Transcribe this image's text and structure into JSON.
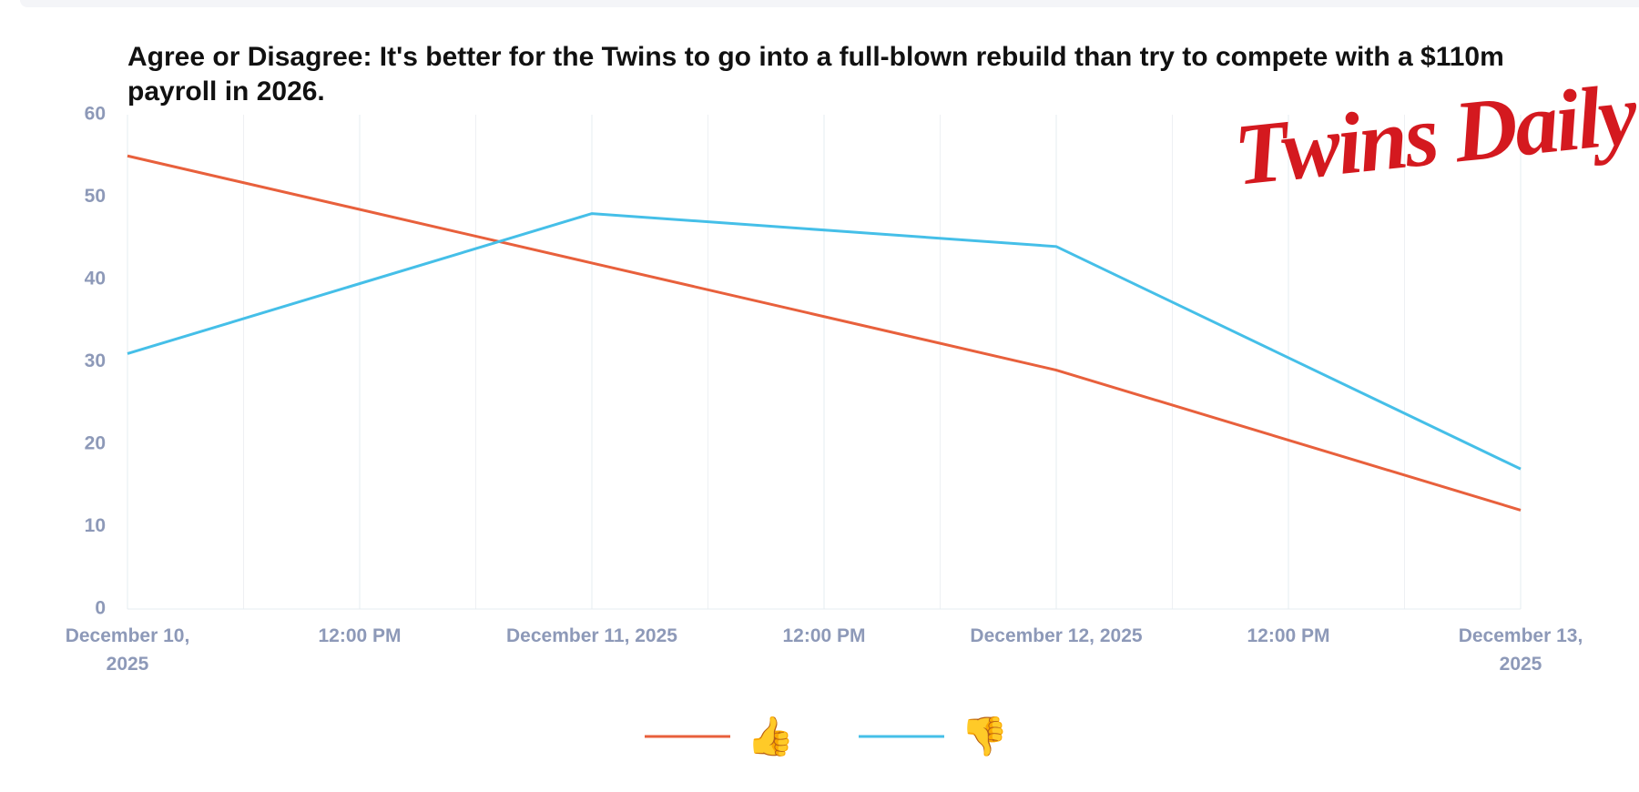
{
  "chart_data": {
    "type": "line",
    "title": "Agree or Disagree: It's better for the Twins to go into a full-blown rebuild than try to compete with a $110m payroll in 2026.",
    "logo": "Twins Daily",
    "x": [
      "December 10, 2025",
      "December 11, 2025",
      "December 12, 2025",
      "December 13, 2025"
    ],
    "xticks": [
      "December 10, 2025",
      "12:00 PM",
      "December 11, 2025",
      "12:00 PM",
      "December 12, 2025",
      "12:00 PM",
      "December 13, 2025"
    ],
    "series": [
      {
        "name": "👍",
        "color": "#e8603c",
        "values": [
          55,
          42,
          29,
          12
        ]
      },
      {
        "name": "👎",
        "color": "#45bfe8",
        "values": [
          31,
          48,
          44,
          17
        ]
      }
    ],
    "ylim": [
      0,
      60
    ],
    "yticks": [
      0,
      10,
      20,
      30,
      40,
      50,
      60
    ],
    "grid": true
  }
}
